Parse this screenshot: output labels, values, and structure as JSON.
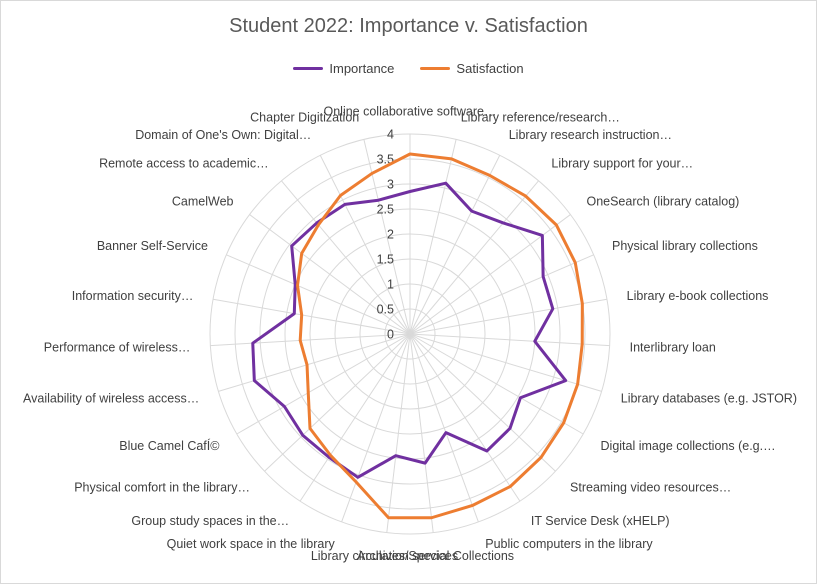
{
  "chart_data": {
    "type": "radar",
    "title": "Student 2022: Importance v. Satisfaction",
    "rlim": [
      0,
      4
    ],
    "ticks": [
      "0",
      "0.5",
      "1",
      "1.5",
      "2",
      "2.5",
      "3",
      "3.5",
      "4"
    ],
    "grid": true,
    "legend_position": "top",
    "categories": [
      "Online collaborative software…",
      "Library reference/research…",
      "Library research instruction…",
      "Library support for your…",
      "OneSearch (library catalog)",
      "Physical library collections",
      "Library e-book collections",
      "Interlibrary loan",
      "Library databases (e.g. JSTOR)",
      "Digital image collections (e.g.…",
      "Streaming video resources…",
      "IT Service Desk (xHELP)",
      "Public computers in the library",
      "Archives/Special Collections",
      "Library circulation services",
      "Quiet work space in the library",
      "Group study spaces in the…",
      "Physical comfort in the library…",
      "Blue Camel CafÍ©",
      "Availability of wireless access…",
      "Performance of wireless…",
      "Information security…",
      "Banner Self-Service",
      "CamelWeb",
      "Remote access to academic…",
      "Domain of One's Own: Digital…",
      "Chapter Digitization"
    ],
    "series": [
      {
        "name": "Importance",
        "color": "#7030a0",
        "values": [
          2.85,
          3.1,
          2.75,
          2.9,
          3.3,
          2.9,
          2.9,
          2.5,
          3.25,
          2.55,
          2.75,
          2.8,
          2.1,
          2.6,
          2.45,
          3.05,
          2.95,
          2.95,
          2.9,
          3.25,
          3.15,
          2.35,
          2.5,
          2.95,
          2.9,
          2.9,
          2.75
        ]
      },
      {
        "name": "Satisfaction",
        "color": "#ed7d31",
        "values": [
          3.6,
          3.6,
          3.55,
          3.6,
          3.65,
          3.6,
          3.5,
          3.45,
          3.5,
          3.55,
          3.6,
          3.65,
          3.65,
          3.7,
          3.7,
          3.15,
          2.9,
          2.75,
          2.35,
          2.15,
          2.2,
          2.2,
          2.45,
          2.7,
          2.85,
          3.1,
          3.3
        ]
      }
    ]
  }
}
